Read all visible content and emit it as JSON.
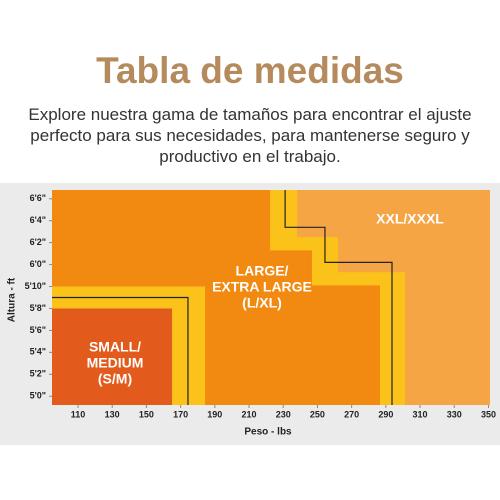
{
  "header": {
    "title": "Tabla de medidas",
    "description": "Explore nuestra gama de tamaños para encontrar el ajuste perfecto para sus necesidades, para mantenerse seguro y productivo en el trabajo."
  },
  "chart_data": {
    "type": "size-chart",
    "xlabel": "Peso - lbs",
    "ylabel": "Altura - ft",
    "xlim": [
      94.8,
      350.9
    ],
    "xticks": [
      110,
      130,
      150,
      170,
      190,
      210,
      230,
      250,
      270,
      290,
      310,
      330,
      350
    ],
    "ylim": [
      59.2,
      78.8
    ],
    "yticks": [
      {
        "value": 60,
        "label": "5'0\""
      },
      {
        "value": 62,
        "label": "5'2\""
      },
      {
        "value": 64,
        "label": "5'4\""
      },
      {
        "value": 66,
        "label": "5'6\""
      },
      {
        "value": 68,
        "label": "5'8\""
      },
      {
        "value": 70,
        "label": "5'10\""
      },
      {
        "value": 72,
        "label": "6'0\""
      },
      {
        "value": 74,
        "label": "6'2\""
      },
      {
        "value": 76,
        "label": "6'4\""
      },
      {
        "value": 78,
        "label": "6'6\""
      }
    ],
    "background_color": "#f28a12",
    "band_color": "#fbc31a",
    "line_color": "#222222",
    "zones": [
      {
        "label_lines": [
          "SMALL/",
          "MEDIUM",
          "(S/M)"
        ],
        "color": "#e25b1c",
        "points": [
          [
            94.8,
            68.0
          ],
          [
            165.0,
            68.0
          ],
          [
            165.0,
            59.2
          ],
          [
            94.8,
            59.2
          ]
        ],
        "band": [
          [
            94.8,
            70.0
          ],
          [
            184.3,
            70.0
          ],
          [
            184.3,
            59.2
          ],
          [
            94.8,
            59.2
          ]
        ],
        "line": [
          [
            94.8,
            69.0
          ],
          [
            174.3,
            69.0
          ],
          [
            174.3,
            59.2
          ]
        ]
      },
      {
        "label_lines": [
          "LARGE/",
          "EXTRA LARGE",
          "(L/XL)"
        ]
      },
      {
        "label_lines": [
          "XXL/XXXL"
        ],
        "color": "#f6a545",
        "points": [
          [
            238.1,
            78.8
          ],
          [
            350.9,
            78.8
          ],
          [
            350.9,
            59.2
          ],
          [
            301.2,
            59.2
          ],
          [
            301.2,
            71.3
          ],
          [
            262.0,
            71.3
          ],
          [
            262.0,
            74.5
          ],
          [
            238.1,
            74.5
          ]
        ],
        "band": [
          [
            222.3,
            78.8
          ],
          [
            350.9,
            78.8
          ],
          [
            350.9,
            59.2
          ],
          [
            286.6,
            59.2
          ],
          [
            286.6,
            70.1
          ],
          [
            246.8,
            70.1
          ],
          [
            246.8,
            73.3
          ],
          [
            222.3,
            73.3
          ]
        ],
        "line": [
          [
            231.1,
            78.8
          ],
          [
            231.1,
            75.4
          ],
          [
            254.4,
            75.4
          ],
          [
            254.4,
            72.2
          ],
          [
            293.6,
            72.2
          ],
          [
            293.6,
            59.2
          ]
        ]
      }
    ]
  }
}
